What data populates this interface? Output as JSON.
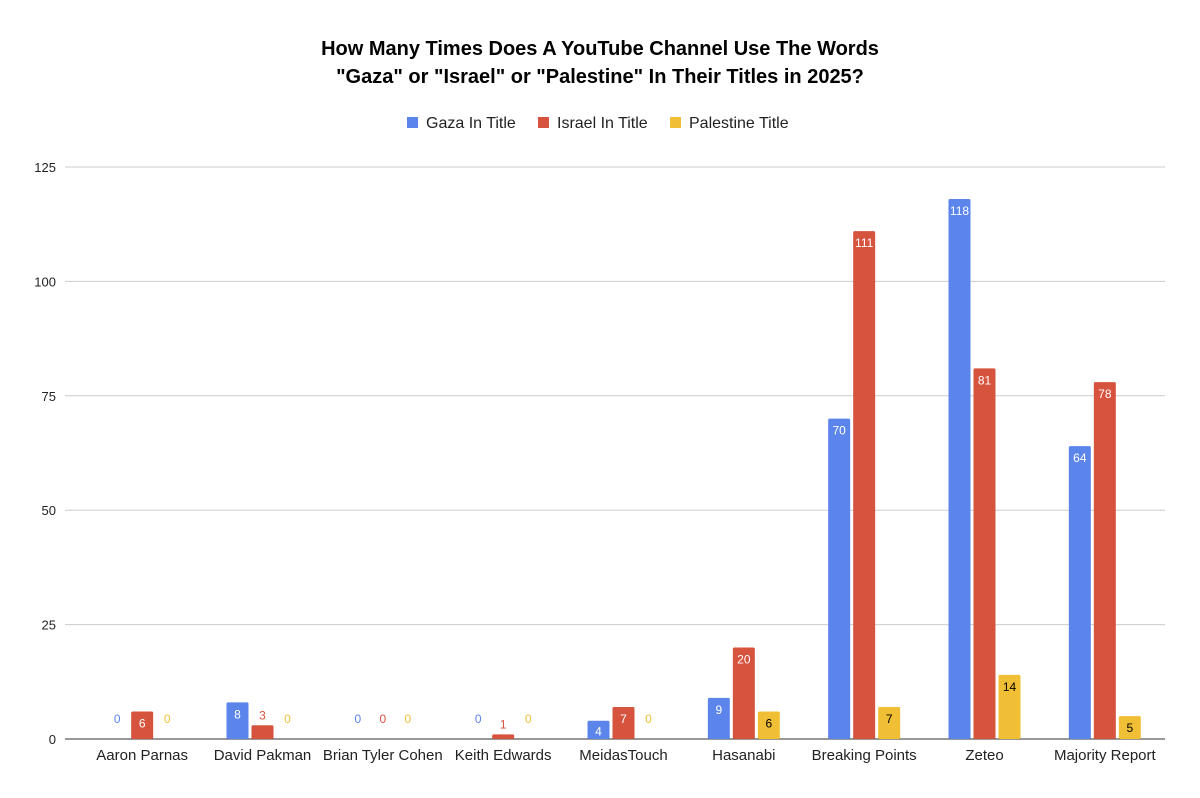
{
  "chart_data": {
    "type": "bar",
    "title": "How Many Times Does A YouTube Channel Use The Words",
    "subtitle": "\"Gaza\" or \"Israel\" or \"Palestine\" In Their Titles in 2025?",
    "xlabel": "",
    "ylabel": "",
    "ylim": [
      0,
      125
    ],
    "yticks": [
      0,
      25,
      50,
      75,
      100,
      125
    ],
    "grid": true,
    "legend_position": "top-center",
    "categories": [
      "Aaron Parnas",
      "David Pakman",
      "Brian Tyler Cohen",
      "Keith Edwards",
      "MeidasTouch",
      "Hasanabi",
      "Breaking Points",
      "Zeteo",
      "Majority Report"
    ],
    "series": [
      {
        "name": "Gaza In Title",
        "color": "#5b85eb",
        "values": [
          0,
          8,
          0,
          0,
          4,
          9,
          70,
          118,
          64
        ]
      },
      {
        "name": "Israel In Title",
        "color": "#d6533e",
        "values": [
          6,
          3,
          0,
          1,
          7,
          20,
          111,
          81,
          78
        ]
      },
      {
        "name": "Palestine Title",
        "color": "#f0bf35",
        "values": [
          0,
          0,
          0,
          0,
          0,
          6,
          7,
          14,
          5
        ]
      }
    ]
  }
}
